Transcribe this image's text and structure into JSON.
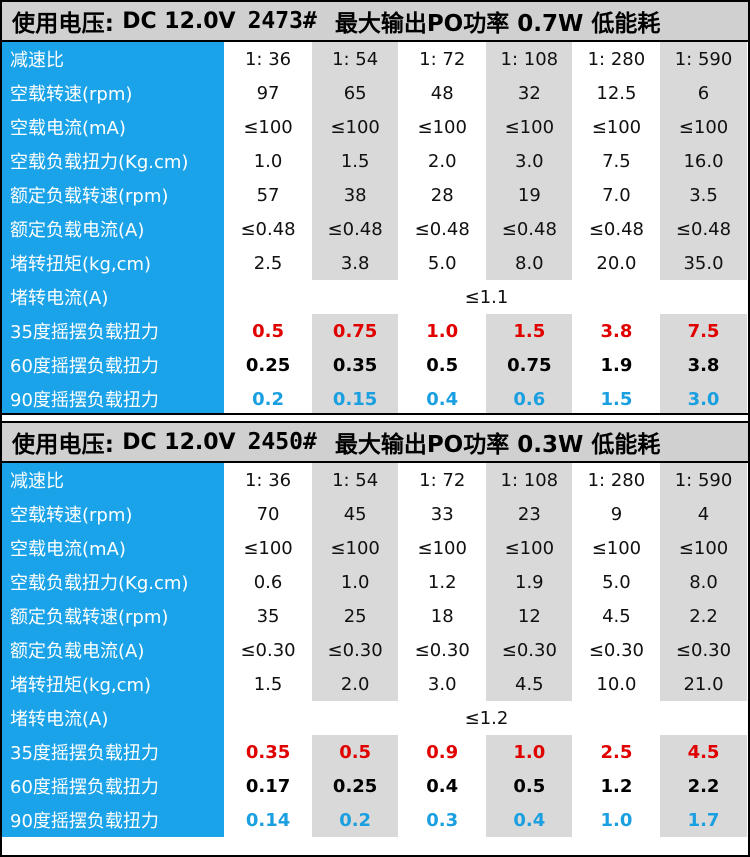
{
  "sections": [
    {
      "title": {
        "part1": "使用电压:",
        "part2": "DC 12.0V",
        "part3": "2473#",
        "part4": "最大输出PO功率 0.7W 低能耗"
      },
      "rows": [
        {
          "label": "减速比",
          "values": [
            "1: 36",
            "1: 54",
            "1: 72",
            "1: 108",
            "1: 280",
            "1: 590"
          ],
          "style": "normal"
        },
        {
          "label": "空载转速(rpm)",
          "values": [
            "97",
            "65",
            "48",
            "32",
            "12.5",
            "6"
          ],
          "style": "normal"
        },
        {
          "label": "空载电流(mA)",
          "values": [
            "≤100",
            "≤100",
            "≤100",
            "≤100",
            "≤100",
            "≤100"
          ],
          "style": "normal"
        },
        {
          "label": "空载负载扭力(Kg.cm)",
          "values": [
            "1.0",
            "1.5",
            "2.0",
            "3.0",
            "7.5",
            "16.0"
          ],
          "style": "normal"
        },
        {
          "label": "额定负载转速(rpm)",
          "values": [
            "57",
            "38",
            "28",
            "19",
            "7.0",
            "3.5"
          ],
          "style": "normal"
        },
        {
          "label": "额定负载电流(A)",
          "values": [
            "≤0.48",
            "≤0.48",
            "≤0.48",
            "≤0.48",
            "≤0.48",
            "≤0.48"
          ],
          "style": "normal"
        },
        {
          "label": "堵转扭矩(kg,cm)",
          "values": [
            "2.5",
            "3.8",
            "5.0",
            "8.0",
            "20.0",
            "35.0"
          ],
          "style": "normal"
        },
        {
          "label": "堵转电流(A)",
          "merged": "≤1.1",
          "style": "merged"
        },
        {
          "label": "35度摇摆负载扭力",
          "values": [
            "0.5",
            "0.75",
            "1.0",
            "1.5",
            "3.8",
            "7.5"
          ],
          "style": "red"
        },
        {
          "label": "60度摇摆负载扭力",
          "values": [
            "0.25",
            "0.35",
            "0.5",
            "0.75",
            "1.9",
            "3.8"
          ],
          "style": "black"
        },
        {
          "label": "90度摇摆负载扭力",
          "values": [
            "0.2",
            "0.15",
            "0.4",
            "0.6",
            "1.5",
            "3.0"
          ],
          "style": "blue"
        }
      ]
    },
    {
      "title": {
        "part1": "使用电压:",
        "part2": "DC 12.0V",
        "part3": "2450#",
        "part4": "最大输出PO功率 0.3W 低能耗"
      },
      "rows": [
        {
          "label": "减速比",
          "values": [
            "1: 36",
            "1: 54",
            "1: 72",
            "1: 108",
            "1: 280",
            "1: 590"
          ],
          "style": "normal"
        },
        {
          "label": "空载转速(rpm)",
          "values": [
            "70",
            "45",
            "33",
            "23",
            "9",
            "4"
          ],
          "style": "normal"
        },
        {
          "label": "空载电流(mA)",
          "values": [
            "≤100",
            "≤100",
            "≤100",
            "≤100",
            "≤100",
            "≤100"
          ],
          "style": "normal"
        },
        {
          "label": "空载负载扭力(Kg.cm)",
          "values": [
            "0.6",
            "1.0",
            "1.2",
            "1.9",
            "5.0",
            "8.0"
          ],
          "style": "normal"
        },
        {
          "label": "额定负载转速(rpm)",
          "values": [
            "35",
            "25",
            "18",
            "12",
            "4.5",
            "2.2"
          ],
          "style": "normal"
        },
        {
          "label": "额定负载电流(A)",
          "values": [
            "≤0.30",
            "≤0.30",
            "≤0.30",
            "≤0.30",
            "≤0.30",
            "≤0.30"
          ],
          "style": "normal"
        },
        {
          "label": "堵转扭矩(kg,cm)",
          "values": [
            "1.5",
            "2.0",
            "3.0",
            "4.5",
            "10.0",
            "21.0"
          ],
          "style": "normal"
        },
        {
          "label": "堵转电流(A)",
          "merged": "≤1.2",
          "style": "merged"
        },
        {
          "label": "35度摇摆负载扭力",
          "values": [
            "0.35",
            "0.5",
            "0.9",
            "1.0",
            "2.5",
            "4.5"
          ],
          "style": "red"
        },
        {
          "label": "60度摇摆负载扭力",
          "values": [
            "0.17",
            "0.25",
            "0.4",
            "0.5",
            "1.2",
            "2.2"
          ],
          "style": "black"
        },
        {
          "label": "90度摇摆负载扭力",
          "values": [
            "0.14",
            "0.2",
            "0.3",
            "0.4",
            "1.0",
            "1.7"
          ],
          "style": "blue"
        }
      ]
    }
  ]
}
